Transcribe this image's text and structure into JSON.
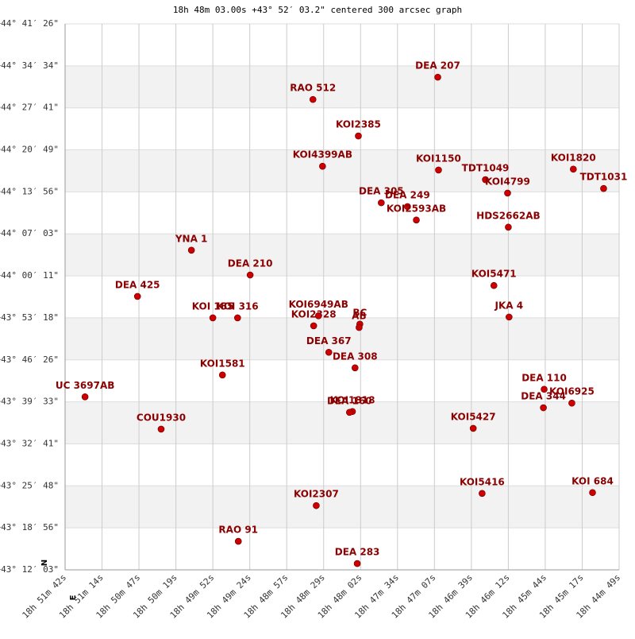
{
  "chart_data": {
    "type": "scatter",
    "title": "18h 48m 03.00s +43° 52′ 03.2\" centered 300 arcsec graph",
    "color": "#cc0000",
    "label_color": "#8b0000",
    "grid": true,
    "banded": true,
    "compass": {
      "north": "N",
      "east": "E"
    },
    "xlim": [
      0,
      15
    ],
    "ylim": [
      0,
      13
    ],
    "xticks": [
      {
        "value": 0,
        "label": "18h 51m 42s"
      },
      {
        "value": 1,
        "label": "18h 51m 14s"
      },
      {
        "value": 2,
        "label": "18h 50m 47s"
      },
      {
        "value": 3,
        "label": "18h 50m 19s"
      },
      {
        "value": 4,
        "label": "18h 49m 52s"
      },
      {
        "value": 5,
        "label": "18h 49m 24s"
      },
      {
        "value": 6,
        "label": "18h 48m 57s"
      },
      {
        "value": 7,
        "label": "18h 48m 29s"
      },
      {
        "value": 8,
        "label": "18h 48m 02s"
      },
      {
        "value": 9,
        "label": "18h 47m 34s"
      },
      {
        "value": 10,
        "label": "18h 47m 07s"
      },
      {
        "value": 11,
        "label": "18h 46m 39s"
      },
      {
        "value": 12,
        "label": "18h 46m 12s"
      },
      {
        "value": 13,
        "label": "18h 45m 44s"
      },
      {
        "value": 14,
        "label": "18h 45m 17s"
      },
      {
        "value": 15,
        "label": "18h 44m 49s"
      }
    ],
    "yticks": [
      {
        "value": 0,
        "label": "+43° 12′ 03\""
      },
      {
        "value": 1,
        "label": "+43° 18′ 56\""
      },
      {
        "value": 2,
        "label": "+43° 25′ 48\""
      },
      {
        "value": 3,
        "label": "+43° 32′ 41\""
      },
      {
        "value": 4,
        "label": "+43° 39′ 33\""
      },
      {
        "value": 5,
        "label": "+43° 46′ 26\""
      },
      {
        "value": 6,
        "label": "+43° 53′ 18\""
      },
      {
        "value": 7,
        "label": "+44° 00′ 11\""
      },
      {
        "value": 8,
        "label": "+44° 07′ 03\""
      },
      {
        "value": 9,
        "label": "+44° 13′ 56\""
      },
      {
        "value": 10,
        "label": "+44° 20′ 49\""
      },
      {
        "value": 11,
        "label": "+44° 27′ 41\""
      },
      {
        "value": 12,
        "label": "+44° 34′ 34\""
      },
      {
        "value": 13,
        "label": "+44° 41′ 26\""
      }
    ],
    "labels": [
      "DEA 207",
      "RAO 512",
      "KOI2385",
      "KOI4399AB",
      "KOI1150",
      "TDT1049",
      "KOI4799",
      "KOI1820",
      "TDT1031",
      "DEA 305",
      "DEA 249",
      "KOI2593AB",
      "HDS2662AB",
      "YNA   1",
      "DEA 210",
      "DEA 425",
      "KOI5471",
      "KOI 165",
      "KOI 316",
      "JKA   4",
      "KOI2328",
      "KOI6949AB",
      "BC",
      "AB",
      "DEA 367",
      "DEA 308",
      "KOI1581",
      "UC 3697AB",
      "DEA 110",
      "DEA 344",
      "KOI6925",
      "KOI1818",
      "DEA 160",
      "KOI5427",
      "COU1930",
      "KOI2307",
      "KOI5416",
      "KOI 684",
      "RAO  91",
      "DEA 283"
    ],
    "x": [
      10.09,
      6.71,
      7.94,
      6.97,
      10.11,
      11.38,
      11.98,
      13.76,
      14.58,
      8.56,
      9.27,
      9.51,
      12.0,
      3.42,
      5.01,
      1.96,
      11.61,
      4.0,
      4.67,
      12.02,
      6.73,
      6.86,
      7.98,
      7.96,
      7.14,
      7.85,
      4.26,
      0.54,
      12.97,
      12.95,
      13.72,
      7.78,
      7.7,
      11.05,
      2.6,
      6.8,
      11.29,
      14.28,
      4.69,
      7.91
    ],
    "values": [
      11.73,
      11.2,
      10.33,
      9.61,
      9.52,
      9.29,
      8.97,
      9.54,
      9.08,
      8.74,
      8.65,
      8.33,
      8.16,
      7.61,
      7.02,
      6.51,
      6.77,
      6.0,
      6.0,
      6.02,
      5.81,
      6.05,
      5.85,
      5.77,
      5.18,
      4.81,
      4.64,
      4.12,
      4.3,
      3.86,
      3.97,
      3.77,
      3.75,
      3.37,
      3.35,
      1.53,
      1.82,
      1.84,
      0.68,
      0.15
    ]
  }
}
